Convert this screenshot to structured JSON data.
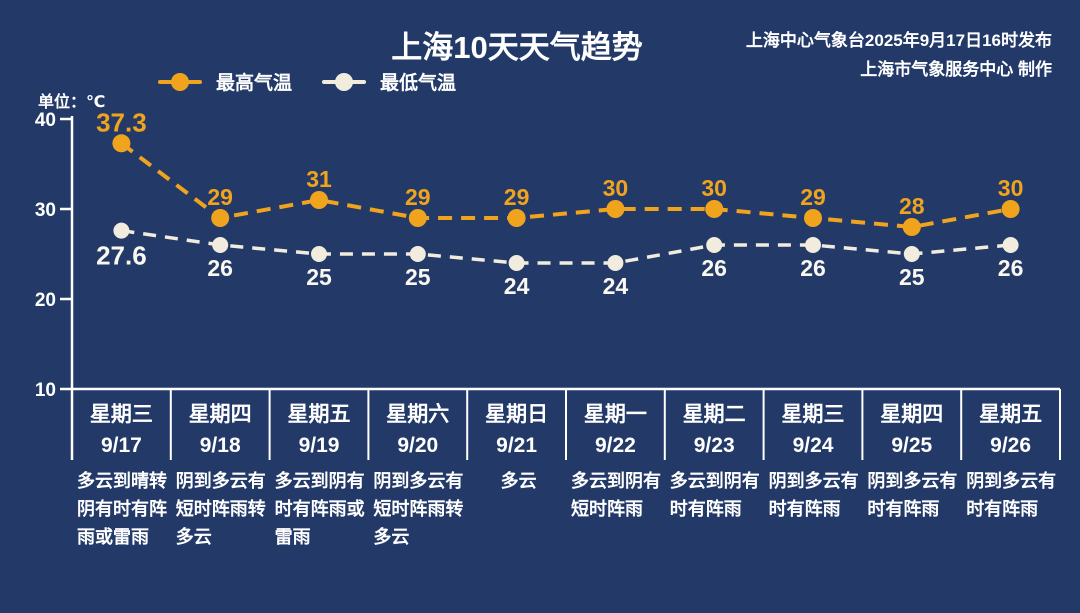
{
  "header": {
    "publisher_line": "上海中心气象台2025年9月17日16时发布",
    "producer_line": "上海市气象服务中心 制作"
  },
  "chart_data": {
    "type": "line",
    "title": "上海10天天气趋势",
    "unit_label": "单位：℃",
    "legend_position": "top-left",
    "grid": false,
    "line_style": "dashed",
    "y_axis": {
      "min": 10,
      "max": 40,
      "ticks": [
        40,
        30,
        20,
        10
      ]
    },
    "categories": [
      {
        "weekday": "星期三",
        "date": "9/17",
        "weather": "多云到晴转阴有时有阵雨或雷雨"
      },
      {
        "weekday": "星期四",
        "date": "9/18",
        "weather": "阴到多云有短时阵雨转多云"
      },
      {
        "weekday": "星期五",
        "date": "9/19",
        "weather": "多云到阴有时有阵雨或雷雨"
      },
      {
        "weekday": "星期六",
        "date": "9/20",
        "weather": "阴到多云有短时阵雨转多云"
      },
      {
        "weekday": "星期日",
        "date": "9/21",
        "weather": "多云"
      },
      {
        "weekday": "星期一",
        "date": "9/22",
        "weather": "多云到阴有短时阵雨"
      },
      {
        "weekday": "星期二",
        "date": "9/23",
        "weather": "多云到阴有时有阵雨"
      },
      {
        "weekday": "星期三",
        "date": "9/24",
        "weather": "阴到多云有时有阵雨"
      },
      {
        "weekday": "星期四",
        "date": "9/25",
        "weather": "阴到多云有时有阵雨"
      },
      {
        "weekday": "星期五",
        "date": "9/26",
        "weather": "阴到多云有时有阵雨"
      }
    ],
    "series": [
      {
        "name": "最高气温",
        "color": "#F0A41E",
        "values": [
          37.3,
          29,
          31,
          29,
          29,
          30,
          30,
          29,
          28,
          30
        ]
      },
      {
        "name": "最低气温",
        "color": "#F1ECDE",
        "label_color": "#FAF8F0",
        "values": [
          27.6,
          26,
          25,
          25,
          24,
          24,
          26,
          26,
          25,
          26
        ]
      }
    ],
    "colors": {
      "background": "#233A69",
      "axis": "#FFFFFF",
      "text": "#FFFFFF"
    }
  }
}
